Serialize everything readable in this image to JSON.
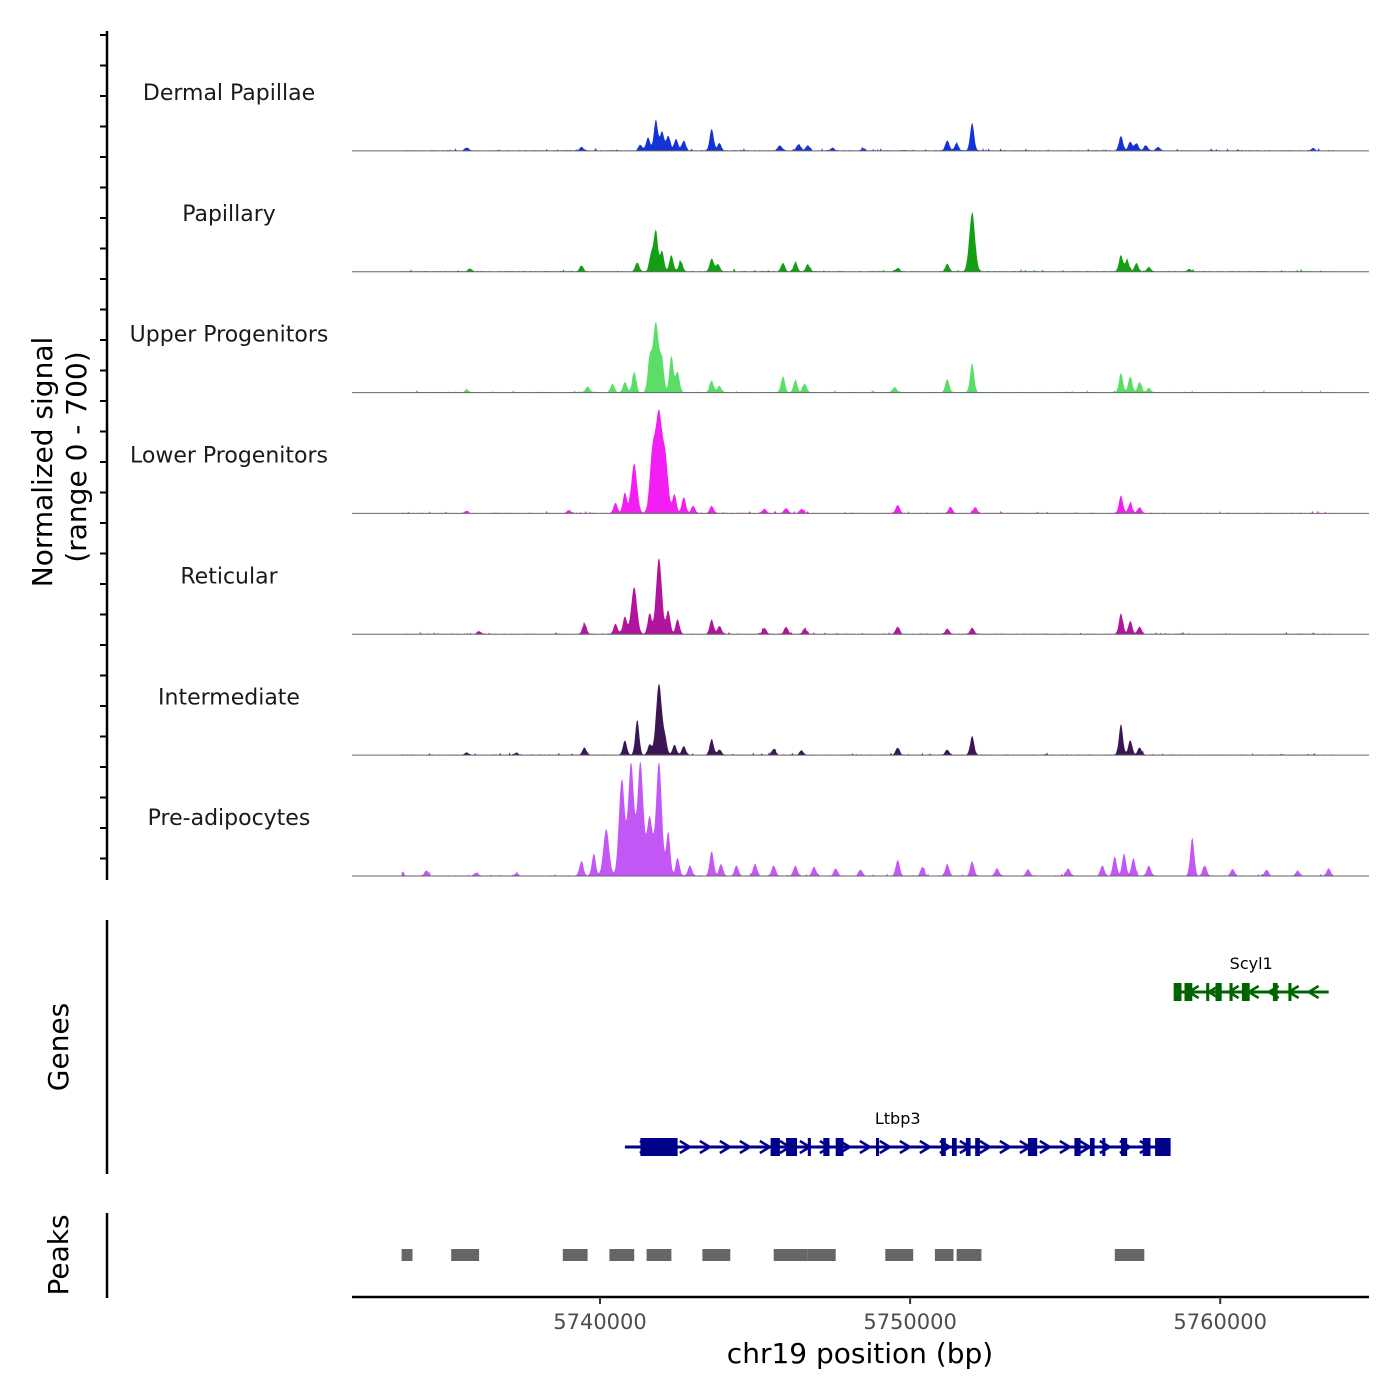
{
  "chart_data": {
    "type": "area",
    "chromosome": "chr19",
    "xlabel": "chr19 position (bp)",
    "xlim": [
      5732000,
      5764800
    ],
    "x_ticks": [
      5740000,
      5750000,
      5760000
    ],
    "x_tick_labels": [
      "5740000",
      "5750000",
      "5760000"
    ],
    "ylabel_line1": "Normalized signal",
    "ylabel_line2": "(range 0 - 700)",
    "ylim": [
      0,
      700
    ],
    "tracks": [
      {
        "name": "Dermal Papillae",
        "color": "#1433d6",
        "peaks": [
          [
            5741800,
            105
          ],
          [
            5742000,
            65
          ],
          [
            5742200,
            50
          ],
          [
            5742450,
            40
          ],
          [
            5742700,
            35
          ],
          [
            5741550,
            45
          ],
          [
            5741300,
            20
          ],
          [
            5743600,
            75
          ],
          [
            5743850,
            25
          ],
          [
            5739400,
            12
          ],
          [
            5745800,
            18
          ],
          [
            5746400,
            22
          ],
          [
            5746700,
            18
          ],
          [
            5747500,
            10
          ],
          [
            5748500,
            8
          ],
          [
            5751200,
            35
          ],
          [
            5751500,
            25
          ],
          [
            5752000,
            95
          ],
          [
            5756800,
            50
          ],
          [
            5757100,
            30
          ],
          [
            5757300,
            25
          ],
          [
            5757600,
            18
          ],
          [
            5758000,
            12
          ],
          [
            5735700,
            10
          ],
          [
            5763000,
            8
          ]
        ]
      },
      {
        "name": "Papillary",
        "color": "#12a012",
        "peaks": [
          [
            5741800,
            140
          ],
          [
            5741650,
            60
          ],
          [
            5742000,
            70
          ],
          [
            5742300,
            55
          ],
          [
            5742600,
            35
          ],
          [
            5741200,
            30
          ],
          [
            5743600,
            45
          ],
          [
            5743800,
            25
          ],
          [
            5739400,
            20
          ],
          [
            5745900,
            28
          ],
          [
            5746300,
            30
          ],
          [
            5746700,
            25
          ],
          [
            5749600,
            12
          ],
          [
            5751200,
            25
          ],
          [
            5752000,
            200
          ],
          [
            5756800,
            55
          ],
          [
            5757000,
            40
          ],
          [
            5757300,
            28
          ],
          [
            5757700,
            15
          ],
          [
            5735800,
            10
          ],
          [
            5759000,
            8
          ]
        ]
      },
      {
        "name": "Upper Progenitors",
        "color": "#5bde68",
        "peaks": [
          [
            5741800,
            240
          ],
          [
            5741600,
            110
          ],
          [
            5742000,
            100
          ],
          [
            5742300,
            125
          ],
          [
            5742500,
            70
          ],
          [
            5741100,
            70
          ],
          [
            5740800,
            35
          ],
          [
            5740400,
            28
          ],
          [
            5739600,
            20
          ],
          [
            5743600,
            40
          ],
          [
            5743850,
            22
          ],
          [
            5745900,
            55
          ],
          [
            5746300,
            40
          ],
          [
            5746600,
            30
          ],
          [
            5749500,
            18
          ],
          [
            5751200,
            45
          ],
          [
            5752000,
            100
          ],
          [
            5756800,
            65
          ],
          [
            5757100,
            55
          ],
          [
            5757400,
            35
          ],
          [
            5757700,
            15
          ],
          [
            5735700,
            8
          ]
        ]
      },
      {
        "name": "Lower Progenitors",
        "color": "#f21ef2",
        "peaks": [
          [
            5741900,
            318
          ],
          [
            5741700,
            215
          ],
          [
            5742100,
            190
          ],
          [
            5741100,
            170
          ],
          [
            5740800,
            70
          ],
          [
            5740500,
            35
          ],
          [
            5742400,
            65
          ],
          [
            5742700,
            55
          ],
          [
            5743000,
            25
          ],
          [
            5743600,
            25
          ],
          [
            5745300,
            15
          ],
          [
            5746000,
            18
          ],
          [
            5746500,
            15
          ],
          [
            5749600,
            28
          ],
          [
            5751300,
            22
          ],
          [
            5752100,
            20
          ],
          [
            5756800,
            60
          ],
          [
            5757100,
            35
          ],
          [
            5757400,
            20
          ],
          [
            5735700,
            8
          ],
          [
            5739000,
            10
          ]
        ]
      },
      {
        "name": "Reticular",
        "color": "#b0159d",
        "peaks": [
          [
            5741900,
            260
          ],
          [
            5741100,
            160
          ],
          [
            5741600,
            70
          ],
          [
            5742200,
            80
          ],
          [
            5742500,
            50
          ],
          [
            5740800,
            60
          ],
          [
            5740500,
            35
          ],
          [
            5739500,
            35
          ],
          [
            5743600,
            50
          ],
          [
            5743850,
            28
          ],
          [
            5745300,
            20
          ],
          [
            5746000,
            25
          ],
          [
            5746600,
            18
          ],
          [
            5749600,
            25
          ],
          [
            5751200,
            18
          ],
          [
            5752000,
            22
          ],
          [
            5756800,
            70
          ],
          [
            5757100,
            45
          ],
          [
            5757400,
            25
          ],
          [
            5736100,
            10
          ]
        ]
      },
      {
        "name": "Intermediate",
        "color": "#3c1554",
        "peaks": [
          [
            5741900,
            245
          ],
          [
            5741200,
            120
          ],
          [
            5740800,
            50
          ],
          [
            5741600,
            35
          ],
          [
            5742100,
            50
          ],
          [
            5742400,
            35
          ],
          [
            5742700,
            30
          ],
          [
            5739500,
            25
          ],
          [
            5743600,
            55
          ],
          [
            5743850,
            18
          ],
          [
            5745600,
            20
          ],
          [
            5746500,
            15
          ],
          [
            5749600,
            25
          ],
          [
            5751200,
            18
          ],
          [
            5752000,
            65
          ],
          [
            5756800,
            105
          ],
          [
            5757100,
            50
          ],
          [
            5757400,
            25
          ],
          [
            5735700,
            8
          ],
          [
            5737300,
            8
          ]
        ]
      },
      {
        "name": "Pre-adipocytes",
        "color": "#c357f6",
        "peaks": [
          [
            5741900,
            390
          ],
          [
            5741300,
            390
          ],
          [
            5741000,
            385
          ],
          [
            5740700,
            330
          ],
          [
            5741600,
            200
          ],
          [
            5740200,
            160
          ],
          [
            5739800,
            75
          ],
          [
            5739400,
            50
          ],
          [
            5742200,
            150
          ],
          [
            5742500,
            60
          ],
          [
            5742900,
            35
          ],
          [
            5743600,
            85
          ],
          [
            5743900,
            40
          ],
          [
            5744400,
            35
          ],
          [
            5745000,
            40
          ],
          [
            5745600,
            35
          ],
          [
            5746300,
            35
          ],
          [
            5746900,
            30
          ],
          [
            5747600,
            25
          ],
          [
            5748400,
            20
          ],
          [
            5749600,
            55
          ],
          [
            5750400,
            30
          ],
          [
            5751200,
            38
          ],
          [
            5752000,
            50
          ],
          [
            5752800,
            25
          ],
          [
            5753800,
            22
          ],
          [
            5755100,
            25
          ],
          [
            5756200,
            35
          ],
          [
            5756600,
            65
          ],
          [
            5756900,
            75
          ],
          [
            5757200,
            60
          ],
          [
            5757700,
            35
          ],
          [
            5759100,
            130
          ],
          [
            5759500,
            35
          ],
          [
            5760400,
            22
          ],
          [
            5761500,
            20
          ],
          [
            5762500,
            18
          ],
          [
            5763500,
            25
          ],
          [
            5733600,
            12
          ],
          [
            5734400,
            18
          ],
          [
            5736000,
            10
          ],
          [
            5737300,
            8
          ]
        ]
      }
    ],
    "genes": [
      {
        "name": "Scyl1",
        "color": "#006400",
        "strand": "-",
        "start": 5758500,
        "end": 5763500,
        "exons": [
          [
            5758500,
            5758750
          ],
          [
            5758850,
            5759100
          ],
          [
            5759550,
            5759650
          ],
          [
            5759850,
            5760050
          ],
          [
            5760300,
            5760400
          ],
          [
            5760700,
            5760950
          ],
          [
            5761700,
            5761850
          ],
          [
            5762200,
            5762300
          ]
        ]
      },
      {
        "name": "Ltbp3",
        "color": "#00008b",
        "strand": "+",
        "start": 5740800,
        "end": 5758400,
        "exons": [
          [
            5741300,
            5742500
          ],
          [
            5745500,
            5745800
          ],
          [
            5746000,
            5746350
          ],
          [
            5746700,
            5746800
          ],
          [
            5747200,
            5747400
          ],
          [
            5747600,
            5747850
          ],
          [
            5748900,
            5749000
          ],
          [
            5751000,
            5751150
          ],
          [
            5751350,
            5751500
          ],
          [
            5751800,
            5751950
          ],
          [
            5752100,
            5752250
          ],
          [
            5753800,
            5754100
          ],
          [
            5755300,
            5755500
          ],
          [
            5755800,
            5755950
          ],
          [
            5756200,
            5756300
          ],
          [
            5756800,
            5757000
          ],
          [
            5757500,
            5757750
          ],
          [
            5757900,
            5758400
          ]
        ]
      }
    ],
    "peaks_track": [
      [
        5733600,
        5733950
      ],
      [
        5735200,
        5736100
      ],
      [
        5738800,
        5739600
      ],
      [
        5740300,
        5741100
      ],
      [
        5741500,
        5742300
      ],
      [
        5743300,
        5744200
      ],
      [
        5745600,
        5746700
      ],
      [
        5746700,
        5747600
      ],
      [
        5749200,
        5750100
      ],
      [
        5750800,
        5751400
      ],
      [
        5751500,
        5752300
      ],
      [
        5756600,
        5757550
      ]
    ],
    "peaks_color": "#666666",
    "genes_label": "Genes",
    "peaks_label": "Peaks"
  }
}
